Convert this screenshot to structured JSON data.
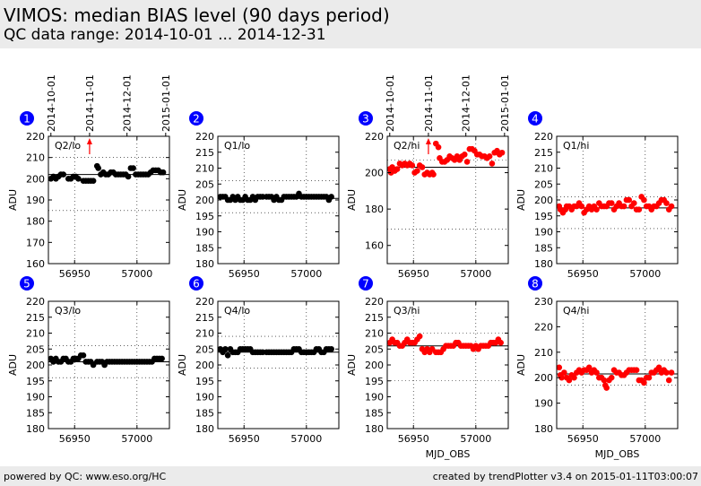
{
  "header": {
    "title": "VIMOS: median BIAS level (90 days period)",
    "subtitle": "QC data range: 2014-10-01 ... 2014-12-31"
  },
  "footer": {
    "left": "powered by QC: www.eso.org/HC",
    "right": "created by trendPlotter v3.4 on 2015-01-11T03:00:07"
  },
  "date_axis": {
    "labels": [
      "2014-10-01",
      "2014-11-01",
      "2014-12-01",
      "2015-01-01"
    ],
    "mjd": [
      56931,
      56962,
      56992,
      57023
    ]
  },
  "colors": {
    "black": "#000000",
    "red": "#ff0000",
    "badge": "#0000ff"
  },
  "chart_data": [
    {
      "badge": "1",
      "label": "Q2/lo",
      "type": "scatter",
      "color": "black",
      "ylim": [
        160,
        220
      ],
      "yticks": [
        160,
        170,
        180,
        190,
        200,
        210,
        220
      ],
      "xlim": [
        56929,
        57026
      ],
      "xticks": [
        56950,
        57000
      ],
      "xlabel": "",
      "ylabel": "ADU",
      "ref_lines": [
        210,
        202,
        185
      ],
      "marker_x": 56962,
      "x": [
        56931,
        56933,
        56935,
        56937,
        56939,
        56941,
        56945,
        56947,
        56949,
        56951,
        56953,
        56957,
        56959,
        56961,
        56963,
        56965,
        56968,
        56969,
        56971,
        56973,
        56975,
        56977,
        56979,
        56981,
        56983,
        56985,
        56987,
        56989,
        56991,
        56993,
        56995,
        56997,
        56999,
        57001,
        57003,
        57005,
        57007,
        57009,
        57011,
        57013,
        57015,
        57017,
        57019,
        57021
      ],
      "y": [
        200,
        201,
        200,
        201,
        202,
        202,
        200,
        200,
        201,
        201,
        200,
        199,
        199,
        199,
        199,
        199,
        206,
        205,
        202,
        203,
        202,
        202,
        203,
        203,
        202,
        202,
        202,
        202,
        202,
        201,
        205,
        205,
        202,
        202,
        202,
        202,
        202,
        202,
        203,
        204,
        204,
        204,
        203,
        203
      ]
    },
    {
      "badge": "2",
      "label": "Q1/lo",
      "type": "scatter",
      "color": "black",
      "ylim": [
        180,
        220
      ],
      "yticks": [
        180,
        185,
        190,
        195,
        200,
        205,
        210,
        215,
        220
      ],
      "xlim": [
        56929,
        57026
      ],
      "xticks": [
        56950,
        57000
      ],
      "xlabel": "",
      "ylabel": "ADU",
      "ref_lines": [
        206,
        200.5,
        196
      ],
      "marker_x": null,
      "x": [
        56931,
        56933,
        56935,
        56937,
        56939,
        56941,
        56943,
        56945,
        56947,
        56949,
        56951,
        56953,
        56955,
        56957,
        56959,
        56961,
        56963,
        56965,
        56968,
        56970,
        56972,
        56974,
        56976,
        56978,
        56980,
        56982,
        56984,
        56986,
        56988,
        56990,
        56992,
        56994,
        56996,
        56998,
        57000,
        57002,
        57004,
        57006,
        57008,
        57010,
        57012,
        57014,
        57016,
        57018,
        57020
      ],
      "y": [
        201,
        201,
        201,
        200,
        200,
        201,
        200,
        201,
        200,
        200,
        201,
        200,
        200,
        201,
        200,
        201,
        201,
        201,
        201,
        201,
        201,
        200,
        201,
        200,
        200,
        201,
        201,
        201,
        201,
        201,
        201,
        202,
        201,
        201,
        201,
        201,
        201,
        201,
        201,
        201,
        201,
        201,
        201,
        200,
        201
      ]
    },
    {
      "badge": "3",
      "label": "Q2/hi",
      "type": "scatter",
      "color": "red",
      "ylim": [
        150,
        220
      ],
      "yticks": [
        160,
        180,
        200,
        220
      ],
      "xlim": [
        56929,
        57026
      ],
      "xticks": [
        56950,
        57000
      ],
      "xlabel": "",
      "ylabel": "ADU",
      "ref_lines": [
        207,
        203,
        169
      ],
      "marker_x": 56962,
      "x": [
        56931,
        56932,
        56933,
        56935,
        56937,
        56939,
        56941,
        56943,
        56945,
        56947,
        56949,
        56951,
        56953,
        56955,
        56957,
        56959,
        56961,
        56963,
        56965,
        56966,
        56968,
        56970,
        56971,
        56973,
        56975,
        56977,
        56979,
        56981,
        56983,
        56985,
        56987,
        56989,
        56991,
        56993,
        56995,
        56997,
        56999,
        57001,
        57003,
        57005,
        57007,
        57009,
        57011,
        57013,
        57015,
        57017,
        57019,
        57021
      ],
      "y": [
        202,
        200,
        203,
        201,
        202,
        205,
        204,
        205,
        204,
        205,
        204,
        200,
        201,
        204,
        203,
        199,
        200,
        199,
        200,
        199,
        216,
        214,
        208,
        206,
        206,
        207,
        209,
        208,
        207,
        209,
        207,
        209,
        210,
        206,
        213,
        213,
        212,
        210,
        210,
        209,
        209,
        208,
        209,
        205,
        211,
        212,
        210,
        211
      ]
    },
    {
      "badge": "4",
      "label": "Q1/hi",
      "type": "scatter",
      "color": "red",
      "ylim": [
        180,
        220
      ],
      "yticks": [
        180,
        185,
        190,
        195,
        200,
        205,
        210,
        215,
        220
      ],
      "xlim": [
        56929,
        57026
      ],
      "xticks": [
        56950,
        57000
      ],
      "xlabel": "",
      "ylabel": "ADU",
      "ref_lines": [
        201,
        197.5,
        191
      ],
      "marker_x": null,
      "x": [
        56931,
        56932,
        56934,
        56936,
        56937,
        56939,
        56941,
        56943,
        56945,
        56947,
        56949,
        56951,
        56953,
        56955,
        56957,
        56959,
        56961,
        56963,
        56965,
        56967,
        56969,
        56971,
        56973,
        56975,
        56977,
        56979,
        56981,
        56983,
        56985,
        56987,
        56989,
        56991,
        56993,
        56995,
        56997,
        56999,
        57001,
        57003,
        57005,
        57007,
        57009,
        57011,
        57013,
        57015,
        57017,
        57019,
        57021
      ],
      "y": [
        198,
        197,
        196,
        197,
        198,
        198,
        197,
        198,
        198,
        199,
        198,
        196,
        197,
        198,
        197,
        198,
        197,
        199,
        198,
        198,
        198,
        199,
        199,
        197,
        198,
        199,
        198,
        198,
        200,
        200,
        198,
        199,
        197,
        197,
        201,
        200,
        198,
        198,
        197,
        198,
        198,
        199,
        200,
        200,
        199,
        197,
        198
      ]
    },
    {
      "badge": "5",
      "label": "Q3/lo",
      "type": "scatter",
      "color": "black",
      "ylim": [
        180,
        220
      ],
      "yticks": [
        180,
        185,
        190,
        195,
        200,
        205,
        210,
        215,
        220
      ],
      "xlim": [
        56929,
        57026
      ],
      "xticks": [
        56950,
        57000
      ],
      "xlabel": "",
      "ylabel": "ADU",
      "ref_lines": [
        206,
        201,
        196
      ],
      "marker_x": null,
      "x": [
        56931,
        56933,
        56935,
        56937,
        56939,
        56941,
        56943,
        56945,
        56947,
        56949,
        56951,
        56953,
        56955,
        56957,
        56959,
        56961,
        56963,
        56965,
        56968,
        56970,
        56972,
        56974,
        56976,
        56978,
        56980,
        56982,
        56984,
        56986,
        56988,
        56990,
        56992,
        56994,
        56996,
        56998,
        57000,
        57002,
        57004,
        57006,
        57008,
        57010,
        57012,
        57014,
        57016,
        57018,
        57020
      ],
      "y": [
        202,
        201,
        202,
        201,
        201,
        202,
        202,
        201,
        201,
        202,
        202,
        202,
        203,
        203,
        201,
        201,
        201,
        200,
        201,
        201,
        201,
        200,
        201,
        201,
        201,
        201,
        201,
        201,
        201,
        201,
        201,
        201,
        201,
        201,
        201,
        201,
        201,
        201,
        201,
        201,
        201,
        202,
        202,
        202,
        202
      ]
    },
    {
      "badge": "6",
      "label": "Q4/lo",
      "type": "scatter",
      "color": "black",
      "ylim": [
        180,
        220
      ],
      "yticks": [
        180,
        185,
        190,
        195,
        200,
        205,
        210,
        215,
        220
      ],
      "xlim": [
        56929,
        57026
      ],
      "xticks": [
        56950,
        57000
      ],
      "xlabel": "",
      "ylabel": "ADU",
      "ref_lines": [
        209,
        204,
        199
      ],
      "marker_x": null,
      "x": [
        56931,
        56933,
        56935,
        56937,
        56939,
        56941,
        56943,
        56945,
        56947,
        56949,
        56951,
        56953,
        56955,
        56957,
        56959,
        56961,
        56963,
        56965,
        56968,
        56970,
        56972,
        56974,
        56976,
        56978,
        56980,
        56982,
        56984,
        56986,
        56988,
        56990,
        56992,
        56994,
        56996,
        56998,
        57000,
        57002,
        57004,
        57006,
        57008,
        57010,
        57012,
        57014,
        57016,
        57018,
        57020
      ],
      "y": [
        205,
        204,
        205,
        203,
        205,
        204,
        204,
        204,
        205,
        205,
        205,
        205,
        205,
        204,
        204,
        204,
        204,
        204,
        204,
        204,
        204,
        204,
        204,
        204,
        204,
        204,
        204,
        204,
        204,
        205,
        205,
        205,
        204,
        204,
        204,
        204,
        204,
        204,
        205,
        205,
        204,
        204,
        205,
        205,
        205
      ]
    },
    {
      "badge": "7",
      "label": "Q3/hi",
      "type": "scatter",
      "color": "red",
      "ylim": [
        180,
        220
      ],
      "yticks": [
        180,
        185,
        190,
        195,
        200,
        205,
        210,
        215,
        220
      ],
      "xlim": [
        56929,
        57026
      ],
      "xticks": [
        56950,
        57000
      ],
      "xlabel": "MJD_OBS",
      "ylabel": "ADU",
      "ref_lines": [
        210,
        206,
        195
      ],
      "marker_x": null,
      "x": [
        56931,
        56933,
        56935,
        56937,
        56939,
        56941,
        56943,
        56945,
        56947,
        56949,
        56951,
        56953,
        56955,
        56957,
        56959,
        56961,
        56963,
        56965,
        56968,
        56970,
        56972,
        56974,
        56976,
        56978,
        56980,
        56982,
        56984,
        56986,
        56988,
        56990,
        56992,
        56994,
        56996,
        56998,
        57000,
        57002,
        57004,
        57006,
        57008,
        57010,
        57012,
        57014,
        57016,
        57018,
        57020
      ],
      "y": [
        207,
        208,
        207,
        207,
        206,
        206,
        207,
        208,
        207,
        207,
        207,
        208,
        209,
        205,
        204,
        205,
        204,
        205,
        204,
        204,
        204,
        205,
        206,
        206,
        206,
        206,
        207,
        207,
        206,
        206,
        206,
        206,
        206,
        205,
        206,
        205,
        206,
        206,
        206,
        206,
        207,
        207,
        207,
        208,
        207
      ]
    },
    {
      "badge": "8",
      "label": "Q4/hi",
      "type": "scatter",
      "color": "red",
      "ylim": [
        180,
        230
      ],
      "yticks": [
        180,
        190,
        200,
        210,
        220,
        230
      ],
      "xlim": [
        56929,
        57026
      ],
      "xticks": [
        56950,
        57000
      ],
      "xlabel": "MJD_OBS",
      "ylabel": "ADU",
      "ref_lines": [
        207,
        201.5,
        197
      ],
      "marker_x": null,
      "x": [
        56931,
        56932,
        56933,
        56935,
        56937,
        56939,
        56941,
        56943,
        56945,
        56947,
        56949,
        56951,
        56953,
        56955,
        56957,
        56959,
        56961,
        56963,
        56965,
        56967,
        56968,
        56969,
        56971,
        56973,
        56975,
        56977,
        56979,
        56981,
        56983,
        56985,
        56987,
        56989,
        56991,
        56993,
        56995,
        56997,
        56999,
        57001,
        57003,
        57005,
        57007,
        57009,
        57011,
        57013,
        57015,
        57017,
        57019,
        57021
      ],
      "y": [
        204,
        201,
        200,
        202,
        200,
        199,
        201,
        200,
        202,
        203,
        202,
        203,
        203,
        204,
        202,
        203,
        202,
        200,
        200,
        199,
        197,
        196,
        199,
        200,
        203,
        202,
        202,
        201,
        201,
        202,
        203,
        203,
        203,
        203,
        199,
        199,
        198,
        200,
        200,
        202,
        202,
        203,
        204,
        202,
        203,
        202,
        199,
        202
      ]
    }
  ]
}
